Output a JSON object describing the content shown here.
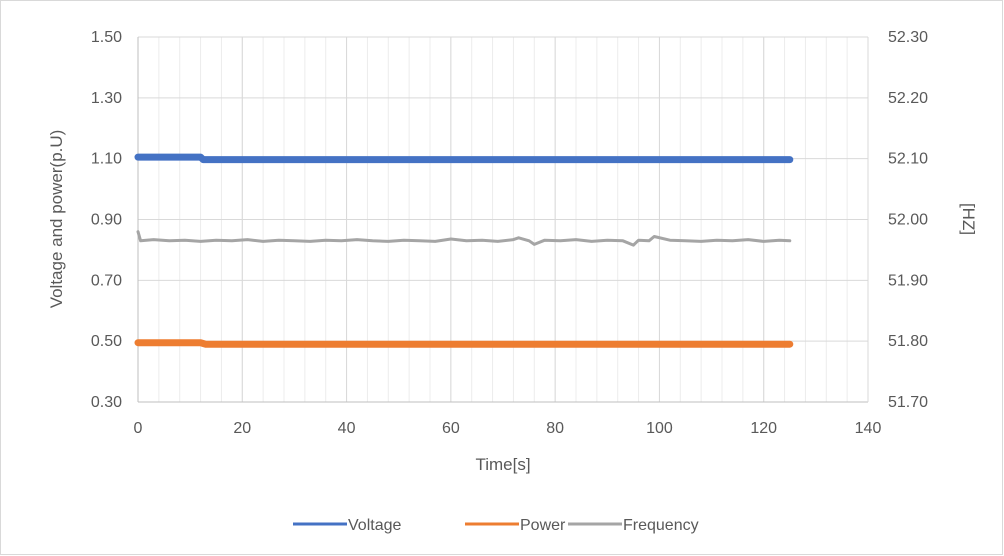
{
  "chart_data": {
    "type": "line",
    "title": "",
    "xlabel": "Time[s]",
    "ylabel": "Voltage and power(p.U)",
    "y2label": "[HZ]",
    "xlim": [
      0,
      140
    ],
    "ylim": [
      0.3,
      1.5
    ],
    "y2lim": [
      51.7,
      52.3
    ],
    "x_ticks": [
      "0",
      "20",
      "40",
      "60",
      "80",
      "100",
      "120",
      "140"
    ],
    "y_ticks": [
      "0.30",
      "0.50",
      "0.70",
      "0.90",
      "1.10",
      "1.30",
      "1.50"
    ],
    "y2_ticks": [
      "51.70",
      "51.80",
      "51.90",
      "52.00",
      "52.10",
      "52.20",
      "52.30"
    ],
    "grid": true,
    "legend_position": "bottom",
    "series": [
      {
        "name": "Voltage",
        "axis": "left",
        "color": "#4472C4",
        "x": [
          0,
          12,
          12.5,
          125
        ],
        "values": [
          1.105,
          1.105,
          1.097,
          1.097
        ]
      },
      {
        "name": "Power",
        "axis": "left",
        "color": "#ED7D31",
        "x": [
          0,
          12,
          13,
          125
        ],
        "values": [
          0.495,
          0.495,
          0.49,
          0.49
        ]
      },
      {
        "name": "Frequency",
        "axis": "right",
        "color": "#A5A5A5",
        "x": [
          0,
          0.5,
          3,
          6,
          9,
          12,
          15,
          18,
          21,
          24,
          27,
          30,
          33,
          36,
          39,
          42,
          45,
          48,
          51,
          54,
          57,
          60,
          63,
          66,
          69,
          72,
          73,
          75,
          76,
          78,
          81,
          84,
          87,
          90,
          93,
          95,
          96,
          98,
          99,
          102,
          105,
          108,
          111,
          114,
          117,
          120,
          123,
          125
        ],
        "values": [
          51.98,
          51.965,
          51.967,
          51.965,
          51.966,
          51.964,
          51.966,
          51.965,
          51.967,
          51.964,
          51.966,
          51.965,
          51.964,
          51.966,
          51.965,
          51.967,
          51.965,
          51.964,
          51.966,
          51.965,
          51.964,
          51.968,
          51.965,
          51.966,
          51.964,
          51.967,
          51.97,
          51.965,
          51.959,
          51.966,
          51.965,
          51.967,
          51.964,
          51.966,
          51.965,
          51.958,
          51.966,
          51.965,
          51.972,
          51.966,
          51.965,
          51.964,
          51.966,
          51.965,
          51.967,
          51.964,
          51.966,
          51.965
        ]
      }
    ]
  }
}
